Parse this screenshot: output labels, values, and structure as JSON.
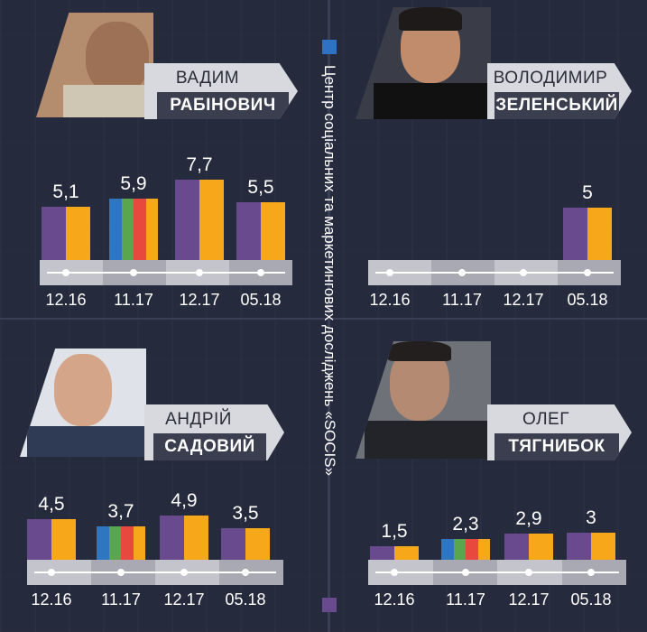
{
  "source_title": "Центр соціальних та маркетингових досліджень «SOCIS»",
  "colors": {
    "purple": "#6a4a8e",
    "orange": "#f6a81a",
    "blue": "#2f76c0",
    "green": "#5aa64e",
    "red": "#e8493f",
    "legend_blue": "#2f72c3",
    "legend_purple": "#6a4a8e"
  },
  "chart_data": [
    {
      "type": "bar",
      "candidate_first": "ВАДИМ",
      "candidate_last": "РАБІНОВИЧ",
      "categories": [
        "12.16",
        "11.17",
        "12.17",
        "05.18"
      ],
      "values": [
        5.1,
        5.9,
        7.7,
        5.5
      ],
      "value_labels": [
        "5,1",
        "5,9",
        "7,7",
        "5,5"
      ],
      "ylim": [
        0,
        8
      ]
    },
    {
      "type": "bar",
      "candidate_first": "ВОЛОДИМИР",
      "candidate_last": "ЗЕЛЕНСЬКИЙ",
      "categories": [
        "12.16",
        "11.17",
        "12.17",
        "05.18"
      ],
      "values": [
        null,
        null,
        null,
        5
      ],
      "value_labels": [
        "",
        "",
        "",
        "5"
      ],
      "ylim": [
        0,
        8
      ]
    },
    {
      "type": "bar",
      "candidate_first": "АНДРІЙ",
      "candidate_last": "САДОВИЙ",
      "categories": [
        "12.16",
        "11.17",
        "12.17",
        "05.18"
      ],
      "values": [
        4.5,
        3.7,
        4.9,
        3.5
      ],
      "value_labels": [
        "4,5",
        "3,7",
        "4,9",
        "3,5"
      ],
      "ylim": [
        0,
        8
      ]
    },
    {
      "type": "bar",
      "candidate_first": "ОЛЕГ",
      "candidate_last": "ТЯГНИБОК",
      "categories": [
        "12.16",
        "11.17",
        "12.17",
        "05.18"
      ],
      "values": [
        1.5,
        2.3,
        2.9,
        3
      ],
      "value_labels": [
        "1,5",
        "2,3",
        "2,9",
        "3"
      ],
      "ylim": [
        0,
        8
      ]
    }
  ]
}
